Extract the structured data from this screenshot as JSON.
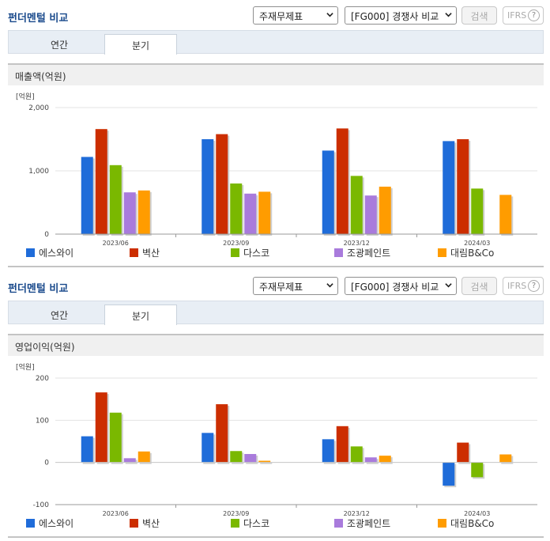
{
  "colors": {
    "title": "#1a4a8c",
    "series": [
      "#1f6cd9",
      "#cc2e00",
      "#7ab800",
      "#a97bdc",
      "#ff9c00"
    ]
  },
  "legend": [
    "에스와이",
    "벽산",
    "다스코",
    "조광페인트",
    "대림B&Co"
  ],
  "header": {
    "title": "펀더멘털 비교",
    "select_statement": "주재무제표",
    "select_compare": "[FG000] 경쟁사 비교",
    "search_label": "검색",
    "ifrs_label": "IFRS",
    "help_glyph": "?"
  },
  "tabs": [
    "연간",
    "분기"
  ],
  "charts": [
    {
      "section_label": "매출액(억원)",
      "chart_data": {
        "type": "bar",
        "unit_label": "[억원]",
        "categories": [
          "2023/06",
          "2023/09",
          "2023/12",
          "2024/03"
        ],
        "ylim": [
          0,
          2000
        ],
        "yticks": [
          0,
          1000,
          2000
        ],
        "ytick_labels": [
          "0",
          "1,000",
          "2,000"
        ],
        "grid": true,
        "legend_position": "bottom",
        "series": [
          {
            "name": "에스와이",
            "values": [
              1220,
              1500,
              1320,
              1470
            ]
          },
          {
            "name": "벽산",
            "values": [
              1660,
              1580,
              1670,
              1500
            ]
          },
          {
            "name": "다스코",
            "values": [
              1090,
              800,
              920,
              720
            ]
          },
          {
            "name": "조광페인트",
            "values": [
              660,
              640,
              610,
              null
            ]
          },
          {
            "name": "대림B&Co",
            "values": [
              690,
              670,
              750,
              620
            ]
          }
        ]
      }
    },
    {
      "section_label": "영업이익(억원)",
      "chart_data": {
        "type": "bar",
        "unit_label": "[억원]",
        "categories": [
          "2023/06",
          "2023/09",
          "2023/12",
          "2024/03"
        ],
        "ylim": [
          -100,
          200
        ],
        "yticks": [
          -100,
          0,
          100,
          200
        ],
        "ytick_labels": [
          "-100",
          "0",
          "100",
          "200"
        ],
        "grid": true,
        "legend_position": "bottom",
        "series": [
          {
            "name": "에스와이",
            "values": [
              62,
              70,
              55,
              -55
            ]
          },
          {
            "name": "벽산",
            "values": [
              166,
              138,
              86,
              47
            ]
          },
          {
            "name": "다스코",
            "values": [
              118,
              27,
              38,
              -35
            ]
          },
          {
            "name": "조광페인트",
            "values": [
              10,
              20,
              12,
              null
            ]
          },
          {
            "name": "대림B&Co",
            "values": [
              26,
              4,
              16,
              19
            ]
          }
        ]
      }
    }
  ]
}
